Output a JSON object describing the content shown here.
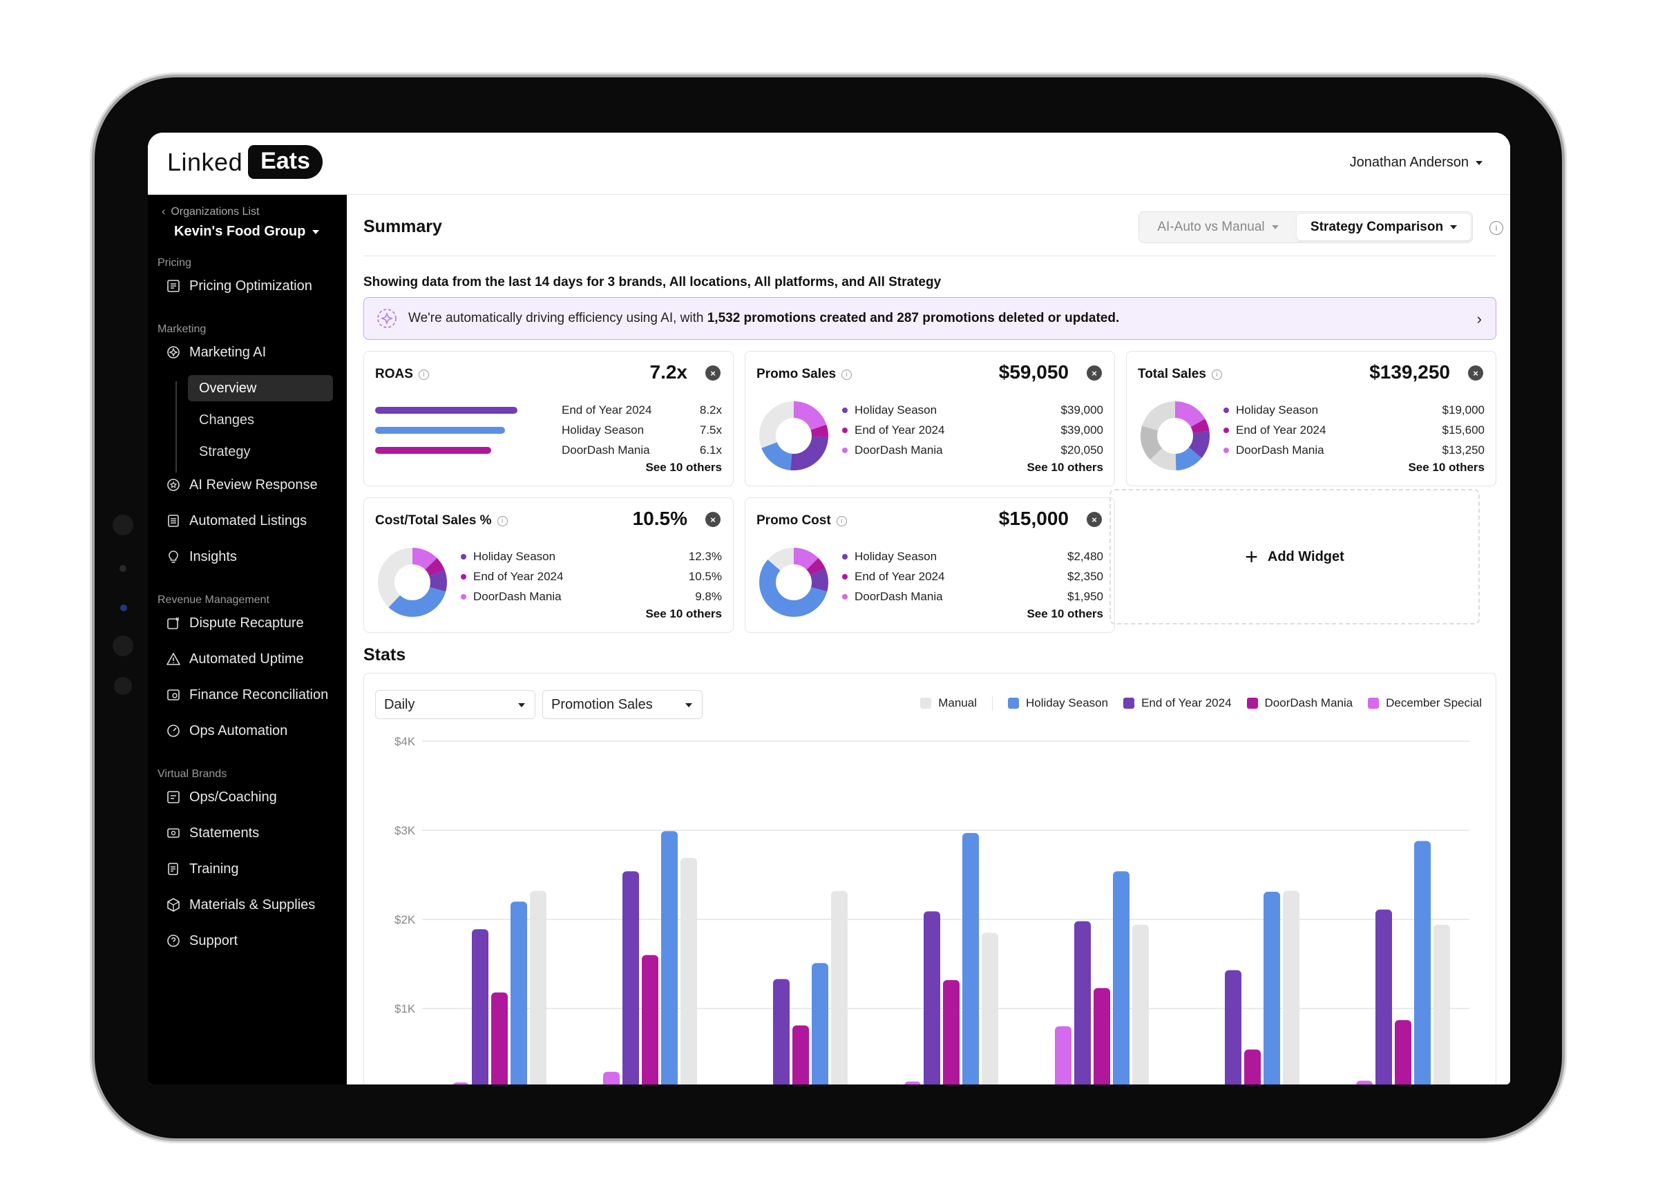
{
  "app": {
    "logo_left": "Linked",
    "logo_right": "Eats",
    "user_name": "Jonathan Anderson"
  },
  "sidebar": {
    "back_label": "Organizations List",
    "org_name": "Kevin's Food Group",
    "sections": {
      "pricing": "Pricing",
      "marketing": "Marketing",
      "revenue": "Revenue Management",
      "virtual": "Virtual Brands"
    },
    "items": {
      "pricing_opt": "Pricing Optimization",
      "marketing_ai": "Marketing AI",
      "overview": "Overview",
      "changes": "Changes",
      "strategy": "Strategy",
      "ai_review": "AI Review Response",
      "auto_listings": "Automated Listings",
      "insights": "Insights",
      "dispute": "Dispute Recapture",
      "uptime": "Automated Uptime",
      "finance": "Finance Reconciliation",
      "ops_auto": "Ops Automation",
      "ops_coaching": "Ops/Coaching",
      "statements": "Statements",
      "training": "Training",
      "materials": "Materials & Supplies",
      "support": "Support"
    }
  },
  "summary": {
    "title": "Summary",
    "toggle_a": "AI-Auto vs Manual",
    "toggle_b": "Strategy Comparison",
    "showing": "Showing data from the last 14 days for 3 brands, All locations, All platforms, and All Strategy",
    "banner_pre": "We're automatically driving efficiency using AI, with ",
    "banner_bold": "1,532 promotions created and 287 promotions deleted or updated.",
    "see_others": "See 10 others"
  },
  "cards": {
    "roas": {
      "title": "ROAS",
      "value": "7.2x",
      "rows": [
        {
          "name": "End of Year 2024",
          "value": "8.2x",
          "ratio": 0.82
        },
        {
          "name": "Holiday Season",
          "value": "7.5x",
          "ratio": 0.75
        },
        {
          "name": "DoorDash Mania",
          "value": "6.1x",
          "ratio": 0.61
        }
      ]
    },
    "promo_sales": {
      "title": "Promo Sales",
      "value": "$59,050",
      "rows": [
        {
          "name": "Holiday Season",
          "value": "$39,000"
        },
        {
          "name": "End of Year 2024",
          "value": "$39,000"
        },
        {
          "name": "DoorDash Mania",
          "value": "$20,050"
        }
      ]
    },
    "total_sales": {
      "title": "Total Sales",
      "value": "$139,250",
      "rows": [
        {
          "name": "Holiday Season",
          "value": "$19,000"
        },
        {
          "name": "End of Year 2024",
          "value": "$15,600"
        },
        {
          "name": "DoorDash Mania",
          "value": "$13,250"
        }
      ]
    },
    "cost_total": {
      "title": "Cost/Total Sales %",
      "value": "10.5%",
      "rows": [
        {
          "name": "Holiday Season",
          "value": "12.3%"
        },
        {
          "name": "End of Year 2024",
          "value": "10.5%"
        },
        {
          "name": "DoorDash Mania",
          "value": "9.8%"
        }
      ]
    },
    "promo_cost": {
      "title": "Promo Cost",
      "value": "$15,000",
      "rows": [
        {
          "name": "Holiday Season",
          "value": "$2,480"
        },
        {
          "name": "End of Year 2024",
          "value": "$2,350"
        },
        {
          "name": "DoorDash Mania",
          "value": "$1,950"
        }
      ]
    },
    "add_widget": "Add Widget"
  },
  "stats": {
    "title": "Stats",
    "period": "Daily",
    "metric": "Promotion Sales"
  },
  "colors": {
    "manual": "#e6e6e6",
    "holiday": "#5b8fe6",
    "end_of_year": "#6f3fb3",
    "doordash": "#b0189c",
    "december": "#d46aec"
  },
  "chart_data": {
    "type": "bar",
    "y_ticks": [
      "$4K",
      "$3K",
      "$2K",
      "$1K"
    ],
    "ylim": [
      0,
      4000
    ],
    "grid": true,
    "legend_position": "top-right",
    "series": [
      {
        "name": "December Special",
        "color": "#d46aec",
        "values": [
          170,
          290,
          60,
          180,
          800,
          80,
          190
        ]
      },
      {
        "name": "End of Year 2024",
        "color": "#6f3fb3",
        "values": [
          1890,
          2540,
          1330,
          2090,
          1980,
          1430,
          2110
        ]
      },
      {
        "name": "DoorDash Mania",
        "color": "#b0189c",
        "values": [
          1180,
          1600,
          810,
          1320,
          1230,
          540,
          870
        ]
      },
      {
        "name": "Holiday Season",
        "color": "#5b8fe6",
        "values": [
          2200,
          2990,
          1510,
          2970,
          2540,
          2310,
          2880
        ]
      },
      {
        "name": "Manual",
        "color": "#e6e6e6",
        "values": [
          2320,
          2690,
          2320,
          1850,
          1940,
          2320,
          1940
        ]
      }
    ],
    "legend": [
      "Manual",
      "Holiday Season",
      "End of Year 2024",
      "DoorDash Mania",
      "December Special"
    ]
  }
}
